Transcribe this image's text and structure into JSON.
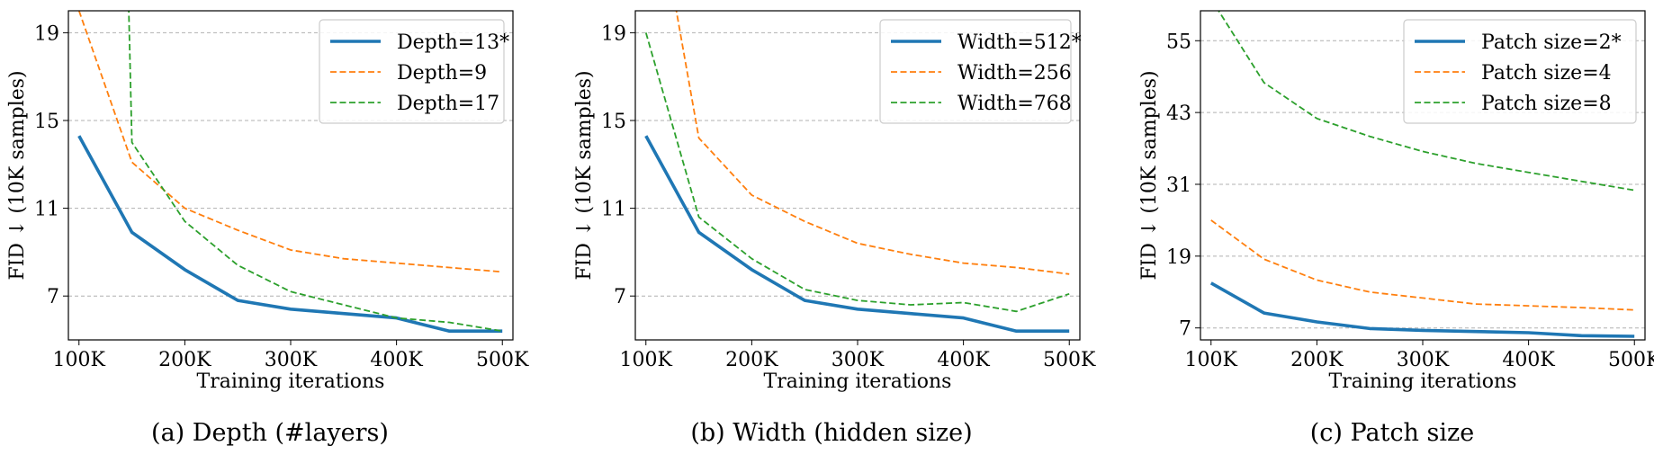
{
  "chart_data": [
    {
      "type": "line",
      "caption": "(a) Depth (#layers)",
      "xlabel": "Training iterations",
      "ylabel": "FID ↓ (10K samples)",
      "x": [
        100000,
        150000,
        200000,
        250000,
        300000,
        350000,
        400000,
        450000,
        500000
      ],
      "xtick_values": [
        100000,
        200000,
        300000,
        400000,
        500000
      ],
      "xtick_labels": [
        "100K",
        "200K",
        "300K",
        "400K",
        "500K"
      ],
      "xlim": [
        90000,
        510000
      ],
      "ylim": [
        5.0,
        20.0
      ],
      "yticks": [
        7,
        11,
        15,
        19
      ],
      "grid": "y-dashed",
      "legend_position": "top-right",
      "series": [
        {
          "name": "Depth=13*",
          "color": "#1f77b4",
          "style": "solid",
          "values": [
            14.3,
            9.9,
            8.2,
            6.8,
            6.4,
            6.2,
            6.0,
            5.4,
            5.4
          ]
        },
        {
          "name": "Depth=9",
          "color": "#ff7f0e",
          "style": "dashed",
          "values": [
            20.0,
            13.1,
            11.0,
            10.0,
            9.1,
            8.7,
            8.5,
            8.3,
            8.1
          ]
        },
        {
          "name": "Depth=17",
          "color": "#2ca02c",
          "style": "dashed",
          "values": [
            null,
            14.0,
            10.4,
            8.4,
            7.2,
            6.6,
            6.0,
            5.8,
            5.4
          ],
          "from_top_at": 147000
        }
      ]
    },
    {
      "type": "line",
      "caption": "(b) Width (hidden size)",
      "xlabel": "Training iterations",
      "ylabel": "FID ↓ (10K samples)",
      "x": [
        100000,
        150000,
        200000,
        250000,
        300000,
        350000,
        400000,
        450000,
        500000
      ],
      "xtick_values": [
        100000,
        200000,
        300000,
        400000,
        500000
      ],
      "xtick_labels": [
        "100K",
        "200K",
        "300K",
        "400K",
        "500K"
      ],
      "xlim": [
        90000,
        510000
      ],
      "ylim": [
        5.0,
        20.0
      ],
      "yticks": [
        7,
        11,
        15,
        19
      ],
      "grid": "y-dashed",
      "legend_position": "top-right",
      "series": [
        {
          "name": "Width=512*",
          "color": "#1f77b4",
          "style": "solid",
          "values": [
            14.3,
            9.9,
            8.2,
            6.8,
            6.4,
            6.2,
            6.0,
            5.4,
            5.4
          ]
        },
        {
          "name": "Width=256",
          "color": "#ff7f0e",
          "style": "dashed",
          "values": [
            null,
            14.2,
            11.6,
            10.4,
            9.4,
            8.9,
            8.5,
            8.3,
            8.0
          ],
          "from_top_at": 128000
        },
        {
          "name": "Width=768",
          "color": "#2ca02c",
          "style": "dashed",
          "values": [
            19.0,
            10.6,
            8.7,
            7.3,
            6.8,
            6.6,
            6.7,
            6.3,
            7.1
          ]
        }
      ]
    },
    {
      "type": "line",
      "caption": "(c) Patch size",
      "xlabel": "Training iterations",
      "ylabel": "FID ↓ (10K samples)",
      "x": [
        100000,
        150000,
        200000,
        250000,
        300000,
        350000,
        400000,
        450000,
        500000
      ],
      "xtick_values": [
        100000,
        200000,
        300000,
        400000,
        500000
      ],
      "xtick_labels": [
        "100K",
        "200K",
        "300K",
        "400K",
        "500K"
      ],
      "xlim": [
        90000,
        510000
      ],
      "ylim": [
        5.0,
        60.0
      ],
      "yticks": [
        7,
        19,
        31,
        43,
        55
      ],
      "grid": "y-dashed",
      "legend_position": "top-right",
      "series": [
        {
          "name": "Patch size=2*",
          "color": "#1f77b4",
          "style": "solid",
          "values": [
            14.5,
            9.5,
            8.0,
            6.9,
            6.6,
            6.4,
            6.2,
            5.7,
            5.6
          ]
        },
        {
          "name": "Patch size=4",
          "color": "#ff7f0e",
          "style": "dashed",
          "values": [
            25.0,
            18.5,
            15.0,
            13.0,
            12.0,
            11.0,
            10.7,
            10.4,
            10.0
          ]
        },
        {
          "name": "Patch size=8",
          "color": "#2ca02c",
          "style": "dashed",
          "values": [
            62.0,
            48.0,
            42.0,
            39.0,
            36.5,
            34.5,
            33.0,
            31.5,
            30.0
          ]
        }
      ]
    }
  ]
}
